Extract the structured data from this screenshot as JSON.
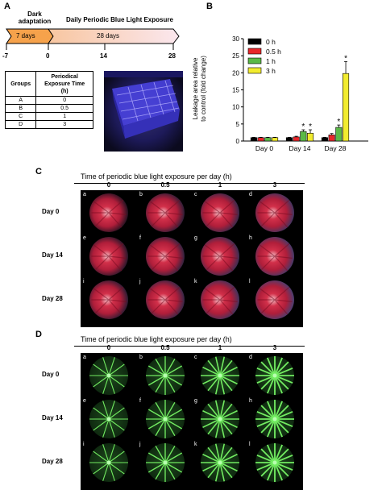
{
  "panels": {
    "a": "A",
    "b": "B",
    "c": "C",
    "d": "D"
  },
  "timeline": {
    "dark_label": "Dark\nadaptation",
    "exposure_title": "Daily Periodic Blue Light Exposure",
    "dark_period": "7 days",
    "exposure_period": "28 days",
    "ticks": [
      "-7",
      "0",
      "14",
      "28"
    ],
    "dark_color": "#f6a24b",
    "exposure_color": "#f8d3c0"
  },
  "groups_table": {
    "headers": [
      "Groups",
      "Periodical\nExposure Time\n(h)"
    ],
    "rows": [
      [
        "A",
        "0"
      ],
      [
        "B",
        "0.5"
      ],
      [
        "C",
        "1"
      ],
      [
        "D",
        "3"
      ]
    ]
  },
  "chart_data": {
    "type": "bar",
    "ylabel": "Leakage area relative\nto control (fold change)",
    "ylim": [
      0,
      30
    ],
    "yticks": [
      0,
      5,
      10,
      15,
      20,
      25,
      30
    ],
    "categories": [
      "Day 0",
      "Day 14",
      "Day 28"
    ],
    "series": [
      {
        "name": "0 h",
        "color": "#000000",
        "values": [
          1.0,
          1.0,
          1.0
        ],
        "errors": [
          0.1,
          0.1,
          0.1
        ],
        "sig": [
          false,
          false,
          false
        ]
      },
      {
        "name": "0.5 h",
        "color": "#e8262a",
        "values": [
          1.0,
          1.2,
          1.8
        ],
        "errors": [
          0.1,
          0.2,
          0.4
        ],
        "sig": [
          false,
          false,
          false
        ]
      },
      {
        "name": "1 h",
        "color": "#5ab947",
        "values": [
          1.0,
          2.8,
          4.0
        ],
        "errors": [
          0.1,
          0.5,
          0.7
        ],
        "sig": [
          false,
          true,
          true
        ]
      },
      {
        "name": "3 h",
        "color": "#f2ec2f",
        "values": [
          1.0,
          2.3,
          19.8
        ],
        "errors": [
          0.1,
          1.0,
          3.5
        ],
        "sig": [
          false,
          true,
          true
        ]
      }
    ],
    "significance_marker": "*"
  },
  "fundus_panel": {
    "title": "Time of periodic blue light exposure per day (h)",
    "columns": [
      "0",
      "0.5",
      "1",
      "3"
    ],
    "rows": [
      "Day 0",
      "Day 14",
      "Day 28"
    ],
    "sublabels": [
      "a",
      "b",
      "c",
      "d",
      "e",
      "f",
      "g",
      "h",
      "i",
      "j",
      "k",
      "l"
    ]
  },
  "angio_panel": {
    "title": "Time of periodic blue light exposure per day (h)",
    "columns": [
      "0",
      "0.5",
      "1",
      "3"
    ],
    "rows": [
      "Day 0",
      "Day 14",
      "Day 28"
    ],
    "sublabels": [
      "a",
      "b",
      "c",
      "d",
      "e",
      "f",
      "g",
      "h",
      "i",
      "j",
      "k",
      "l"
    ]
  }
}
